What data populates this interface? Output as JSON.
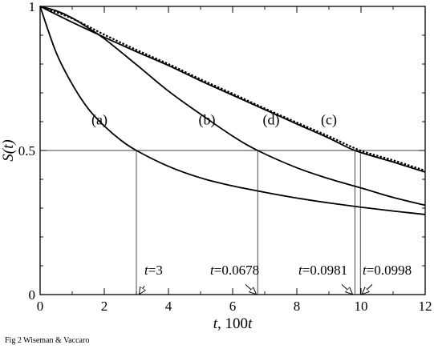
{
  "caption": "Fig 2  Wiseman & Vaccaro",
  "chart_data": {
    "type": "line",
    "title": "",
    "xlabel": "t, 100t",
    "ylabel": "S(t)",
    "xlim": [
      0,
      12
    ],
    "ylim": [
      0,
      1
    ],
    "xticks": [
      0,
      2,
      4,
      6,
      8,
      10,
      12
    ],
    "xtick_labels": [
      "0",
      "2",
      "4",
      "6",
      "8",
      "10",
      "12"
    ],
    "yticks": [
      0,
      0.5,
      1
    ],
    "ytick_labels": [
      "0",
      "0.5",
      "1"
    ],
    "reference_line_y": 0.5,
    "series": [
      {
        "name": "(a)",
        "style": "solid",
        "x": [
          0,
          0.5,
          1,
          1.5,
          2,
          2.5,
          3,
          4,
          5,
          6,
          7,
          8,
          9,
          10,
          11,
          12
        ],
        "y": [
          1,
          0.84,
          0.73,
          0.645,
          0.585,
          0.537,
          0.5,
          0.445,
          0.405,
          0.377,
          0.355,
          0.335,
          0.318,
          0.303,
          0.29,
          0.278
        ]
      },
      {
        "name": "(b)",
        "style": "solid",
        "x": [
          0,
          0.5,
          1,
          1.5,
          2,
          3,
          4,
          5,
          6,
          6.78,
          8,
          9,
          10,
          11,
          12
        ],
        "y": [
          1,
          0.985,
          0.96,
          0.925,
          0.888,
          0.798,
          0.706,
          0.626,
          0.55,
          0.5,
          0.44,
          0.402,
          0.37,
          0.337,
          0.31
        ]
      },
      {
        "name": "(c)",
        "style": "dotted",
        "x": [
          0,
          1,
          2,
          3,
          4,
          5,
          6,
          7,
          8,
          9,
          9.98,
          11,
          12
        ],
        "y": [
          1,
          0.958,
          0.902,
          0.849,
          0.8,
          0.747,
          0.697,
          0.646,
          0.597,
          0.549,
          0.5,
          0.466,
          0.43
        ]
      },
      {
        "name": "(d)",
        "style": "solid",
        "x": [
          0,
          1,
          2,
          3,
          4,
          5,
          6,
          7,
          8,
          9,
          9.81,
          11,
          12
        ],
        "y": [
          1,
          0.945,
          0.893,
          0.843,
          0.795,
          0.742,
          0.692,
          0.642,
          0.592,
          0.543,
          0.5,
          0.46,
          0.425
        ]
      }
    ],
    "series_labels": [
      {
        "text": "(a)",
        "x": 1.85,
        "y": 0.59
      },
      {
        "text": "(b)",
        "x": 5.2,
        "y": 0.59
      },
      {
        "text": "(d)",
        "x": 7.2,
        "y": 0.59
      },
      {
        "text": "(c)",
        "x": 9.0,
        "y": 0.59
      }
    ],
    "crossing_lines_x": [
      3,
      6.78,
      9.81,
      9.98
    ],
    "annotations": [
      {
        "var": "t",
        "value": "=3",
        "label_x": 3.25,
        "label_y": 0.07,
        "arrow_from": [
          3.25,
          0.03
        ],
        "arrow_to": [
          3.1,
          0.0
        ]
      },
      {
        "var": "t",
        "value": "=0.0678",
        "label_x": 5.3,
        "label_y": 0.07,
        "arrow_from": [
          6.4,
          0.035
        ],
        "arrow_to": [
          6.72,
          0.0
        ]
      },
      {
        "var": "t",
        "value": "=0.0981",
        "label_x": 8.05,
        "label_y": 0.07,
        "arrow_from": [
          9.4,
          0.035
        ],
        "arrow_to": [
          9.72,
          0.0
        ]
      },
      {
        "var": "t",
        "value": "=0.0998",
        "label_x": 10.05,
        "label_y": 0.07,
        "arrow_from": [
          10.35,
          0.035
        ],
        "arrow_to": [
          10.05,
          0.0
        ]
      }
    ]
  }
}
